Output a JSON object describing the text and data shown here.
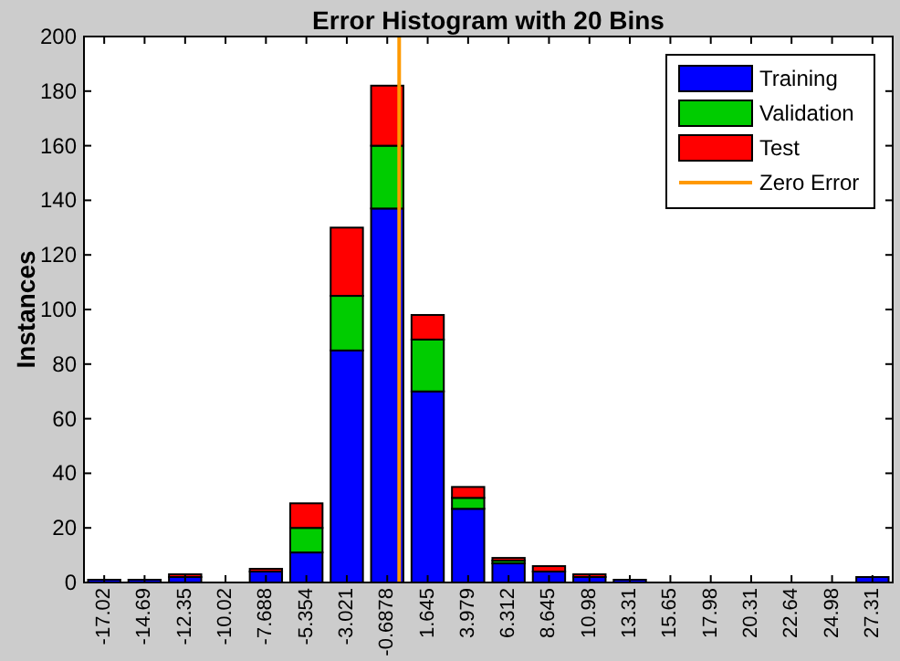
{
  "chart_data": {
    "type": "bar",
    "title": "Error Histogram with 20 Bins",
    "ylabel": "Instances",
    "x": [
      -17.02,
      -14.69,
      -12.35,
      -10.02,
      -7.688,
      -5.354,
      -3.021,
      -0.6878,
      1.645,
      3.979,
      6.312,
      8.645,
      10.98,
      13.31,
      15.65,
      17.98,
      20.31,
      22.64,
      24.98,
      27.31
    ],
    "stacked": true,
    "series": [
      {
        "name": "Training",
        "color": "#0000ff",
        "values": [
          1,
          1,
          2,
          0,
          4,
          11,
          85,
          137,
          70,
          27,
          7,
          4,
          2,
          1,
          0,
          0,
          0,
          0,
          0,
          2
        ]
      },
      {
        "name": "Validation",
        "color": "#00cc00",
        "values": [
          0,
          0,
          0,
          0,
          0,
          9,
          20,
          23,
          19,
          4,
          1,
          0,
          0,
          0,
          0,
          0,
          0,
          0,
          0,
          0
        ]
      },
      {
        "name": "Test",
        "color": "#ff0000",
        "values": [
          0,
          0,
          1,
          0,
          1,
          9,
          25,
          22,
          9,
          4,
          1,
          2,
          1,
          0,
          0,
          0,
          0,
          0,
          0,
          0
        ]
      },
      {
        "name": "Zero Error",
        "type": "line",
        "color": "#ff9900",
        "x": [
          0,
          0
        ],
        "values": [
          0,
          200
        ]
      }
    ],
    "xlim": [
      -18.187,
      28.478
    ],
    "xticks": [
      -17.02,
      -14.69,
      -12.35,
      -10.02,
      -7.688,
      -5.354,
      -3.021,
      -0.6878,
      1.645,
      3.979,
      6.312,
      8.645,
      10.98,
      13.31,
      15.65,
      17.98,
      20.31,
      22.64,
      24.98,
      27.31
    ],
    "ylim": [
      0,
      200
    ],
    "yticks": [
      0,
      20,
      40,
      60,
      80,
      100,
      120,
      140,
      160,
      180,
      200
    ],
    "legend": "top right",
    "grid": false
  }
}
